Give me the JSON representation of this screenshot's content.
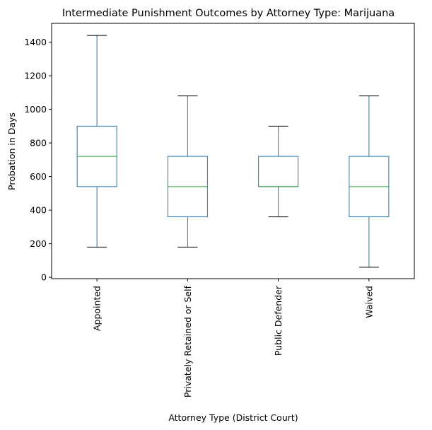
{
  "chart_data": {
    "type": "boxplot",
    "title": "Intermediate Punishment Outcomes by Attorney Type: Marijuana",
    "xlabel": "Attorney Type (District Court)",
    "ylabel": "Probation in Days",
    "ylim": [
      -8,
      1512
    ],
    "yticks": [
      0,
      200,
      400,
      600,
      800,
      1000,
      1200,
      1400
    ],
    "grid": false,
    "categories": [
      "Appointed",
      "Privately Retained or Self",
      "Public Defender",
      "Waived"
    ],
    "boxes": [
      {
        "category": "Appointed",
        "whisker_low": 180,
        "q1": 540,
        "median": 720,
        "q3": 900,
        "whisker_high": 1440
      },
      {
        "category": "Privately Retained or Self",
        "whisker_low": 180,
        "q1": 360,
        "median": 540,
        "q3": 720,
        "whisker_high": 1080
      },
      {
        "category": "Public Defender",
        "whisker_low": 360,
        "q1": 540,
        "median": 540,
        "q3": 720,
        "whisker_high": 900
      },
      {
        "category": "Waived",
        "whisker_low": 60,
        "q1": 360,
        "median": 540,
        "q3": 720,
        "whisker_high": 1080
      }
    ],
    "colors": {
      "box": "#1f77b4",
      "median": "#2ca02c",
      "cap": "#000000"
    }
  }
}
